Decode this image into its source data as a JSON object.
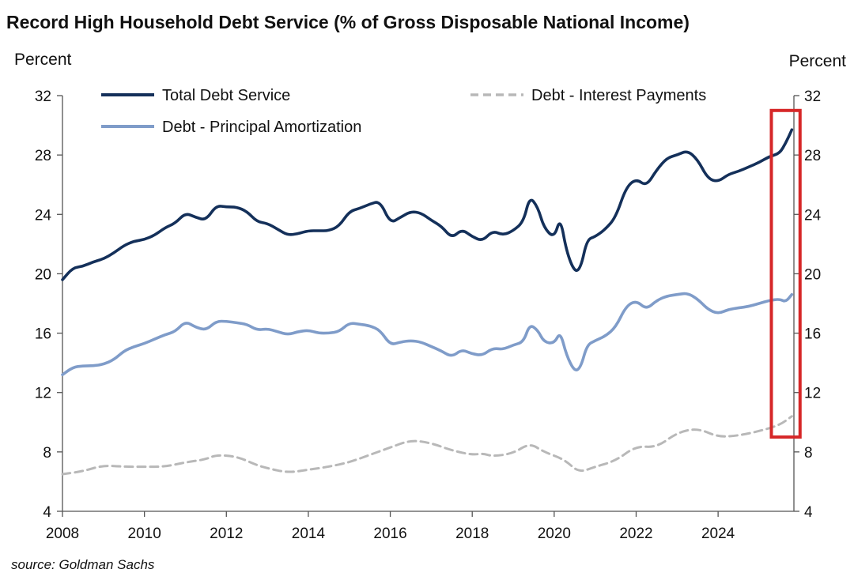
{
  "chart_data": {
    "type": "line",
    "title": "Record High Household Debt Service (% of Gross Disposable National Income)",
    "ylabel_left": "Percent",
    "ylabel_right": "Percent",
    "ylim": [
      4,
      32
    ],
    "yticks": [
      "4",
      "8",
      "12",
      "16",
      "20",
      "24",
      "28",
      "32"
    ],
    "xlim": [
      2008,
      2025.85
    ],
    "xticks": [
      "2008",
      "2010",
      "2012",
      "2014",
      "2016",
      "2018",
      "2020",
      "2022",
      "2024"
    ],
    "grid": false,
    "legend_position": "top",
    "source": "source: Goldman Sachs",
    "highlight": {
      "x_range": [
        2025.3,
        2026.0
      ],
      "y_range": [
        9,
        31
      ],
      "color": "#d62728"
    },
    "series": [
      {
        "name": "Total Debt Service",
        "color": "#14305a",
        "style": "solid",
        "x": [
          2008.0,
          2008.25,
          2008.5,
          2008.75,
          2009.0,
          2009.25,
          2009.5,
          2009.75,
          2010.0,
          2010.25,
          2010.5,
          2010.75,
          2011.0,
          2011.25,
          2011.5,
          2011.75,
          2012.0,
          2012.25,
          2012.5,
          2012.75,
          2013.0,
          2013.25,
          2013.5,
          2013.75,
          2014.0,
          2014.25,
          2014.5,
          2014.75,
          2015.0,
          2015.25,
          2015.5,
          2015.75,
          2016.0,
          2016.25,
          2016.5,
          2016.75,
          2017.0,
          2017.25,
          2017.5,
          2017.75,
          2018.0,
          2018.25,
          2018.5,
          2018.75,
          2019.0,
          2019.25,
          2019.4,
          2019.6,
          2019.75,
          2020.0,
          2020.15,
          2020.3,
          2020.5,
          2020.65,
          2020.8,
          2021.0,
          2021.25,
          2021.5,
          2021.75,
          2022.0,
          2022.25,
          2022.5,
          2022.75,
          2023.0,
          2023.25,
          2023.5,
          2023.75,
          2024.0,
          2024.25,
          2024.5,
          2024.75,
          2025.0,
          2025.25,
          2025.5,
          2025.65,
          2025.8
        ],
        "values": [
          19.6,
          20.4,
          20.5,
          20.8,
          21.0,
          21.4,
          21.9,
          22.2,
          22.3,
          22.6,
          23.1,
          23.4,
          24.1,
          23.8,
          23.6,
          24.6,
          24.5,
          24.5,
          24.2,
          23.5,
          23.4,
          23.0,
          22.6,
          22.7,
          22.9,
          22.9,
          22.9,
          23.2,
          24.2,
          24.4,
          24.7,
          24.9,
          23.4,
          23.8,
          24.2,
          24.1,
          23.6,
          23.2,
          22.4,
          23.0,
          22.5,
          22.2,
          22.9,
          22.6,
          22.9,
          23.5,
          25.2,
          24.5,
          23.1,
          22.4,
          23.8,
          21.5,
          20.1,
          20.4,
          22.3,
          22.5,
          23.0,
          23.8,
          25.8,
          26.4,
          25.9,
          27.0,
          27.8,
          28.0,
          28.3,
          27.7,
          26.4,
          26.2,
          26.7,
          26.9,
          27.2,
          27.5,
          27.9,
          28.1,
          28.8,
          29.7
        ]
      },
      {
        "name": "Debt - Principal Amortization",
        "color": "#7f9cc9",
        "style": "solid",
        "x": [
          2008.0,
          2008.25,
          2008.5,
          2008.75,
          2009.0,
          2009.25,
          2009.5,
          2009.75,
          2010.0,
          2010.25,
          2010.5,
          2010.75,
          2011.0,
          2011.25,
          2011.5,
          2011.75,
          2012.0,
          2012.25,
          2012.5,
          2012.75,
          2013.0,
          2013.25,
          2013.5,
          2013.75,
          2014.0,
          2014.25,
          2014.5,
          2014.75,
          2015.0,
          2015.25,
          2015.5,
          2015.75,
          2016.0,
          2016.25,
          2016.5,
          2016.75,
          2017.0,
          2017.25,
          2017.5,
          2017.75,
          2018.0,
          2018.25,
          2018.5,
          2018.75,
          2019.0,
          2019.25,
          2019.4,
          2019.6,
          2019.75,
          2020.0,
          2020.15,
          2020.3,
          2020.5,
          2020.65,
          2020.8,
          2021.0,
          2021.25,
          2021.5,
          2021.75,
          2022.0,
          2022.25,
          2022.5,
          2022.75,
          2023.0,
          2023.25,
          2023.5,
          2023.75,
          2024.0,
          2024.25,
          2024.5,
          2024.75,
          2025.0,
          2025.25,
          2025.5,
          2025.65,
          2025.8
        ],
        "values": [
          13.2,
          13.7,
          13.8,
          13.8,
          13.9,
          14.2,
          14.8,
          15.1,
          15.3,
          15.6,
          15.9,
          16.1,
          16.8,
          16.4,
          16.2,
          16.8,
          16.8,
          16.7,
          16.6,
          16.2,
          16.3,
          16.1,
          15.9,
          16.1,
          16.2,
          16.0,
          16.0,
          16.1,
          16.7,
          16.6,
          16.5,
          16.2,
          15.2,
          15.4,
          15.5,
          15.4,
          15.1,
          14.8,
          14.4,
          14.9,
          14.6,
          14.5,
          15.0,
          14.9,
          15.2,
          15.4,
          16.6,
          16.2,
          15.4,
          15.3,
          16.1,
          14.5,
          13.4,
          13.7,
          15.2,
          15.5,
          15.8,
          16.4,
          17.8,
          18.2,
          17.6,
          18.2,
          18.5,
          18.6,
          18.7,
          18.3,
          17.6,
          17.3,
          17.6,
          17.7,
          17.8,
          18.0,
          18.2,
          18.3,
          18.1,
          18.6
        ]
      },
      {
        "name": "Debt - Interest Payments",
        "color": "#b8b8b8",
        "style": "dashed",
        "x": [
          2008.0,
          2008.5,
          2009.0,
          2009.5,
          2010.0,
          2010.5,
          2011.0,
          2011.5,
          2011.75,
          2012.25,
          2012.75,
          2013.0,
          2013.5,
          2014.0,
          2014.5,
          2015.0,
          2015.5,
          2016.0,
          2016.5,
          2017.0,
          2017.5,
          2018.0,
          2018.25,
          2018.5,
          2019.0,
          2019.4,
          2019.75,
          2020.25,
          2020.6,
          2021.0,
          2021.5,
          2022.0,
          2022.5,
          2023.0,
          2023.5,
          2024.0,
          2024.5,
          2025.0,
          2025.5,
          2025.8
        ],
        "values": [
          6.5,
          6.7,
          7.1,
          7.0,
          7.0,
          7.0,
          7.3,
          7.5,
          7.8,
          7.7,
          7.1,
          6.9,
          6.6,
          6.8,
          7.0,
          7.3,
          7.8,
          8.3,
          8.8,
          8.6,
          8.1,
          7.8,
          7.9,
          7.7,
          7.9,
          8.6,
          8.0,
          7.5,
          6.6,
          7.0,
          7.4,
          8.4,
          8.3,
          9.3,
          9.6,
          9.0,
          9.1,
          9.4,
          9.8,
          10.4
        ]
      }
    ]
  }
}
